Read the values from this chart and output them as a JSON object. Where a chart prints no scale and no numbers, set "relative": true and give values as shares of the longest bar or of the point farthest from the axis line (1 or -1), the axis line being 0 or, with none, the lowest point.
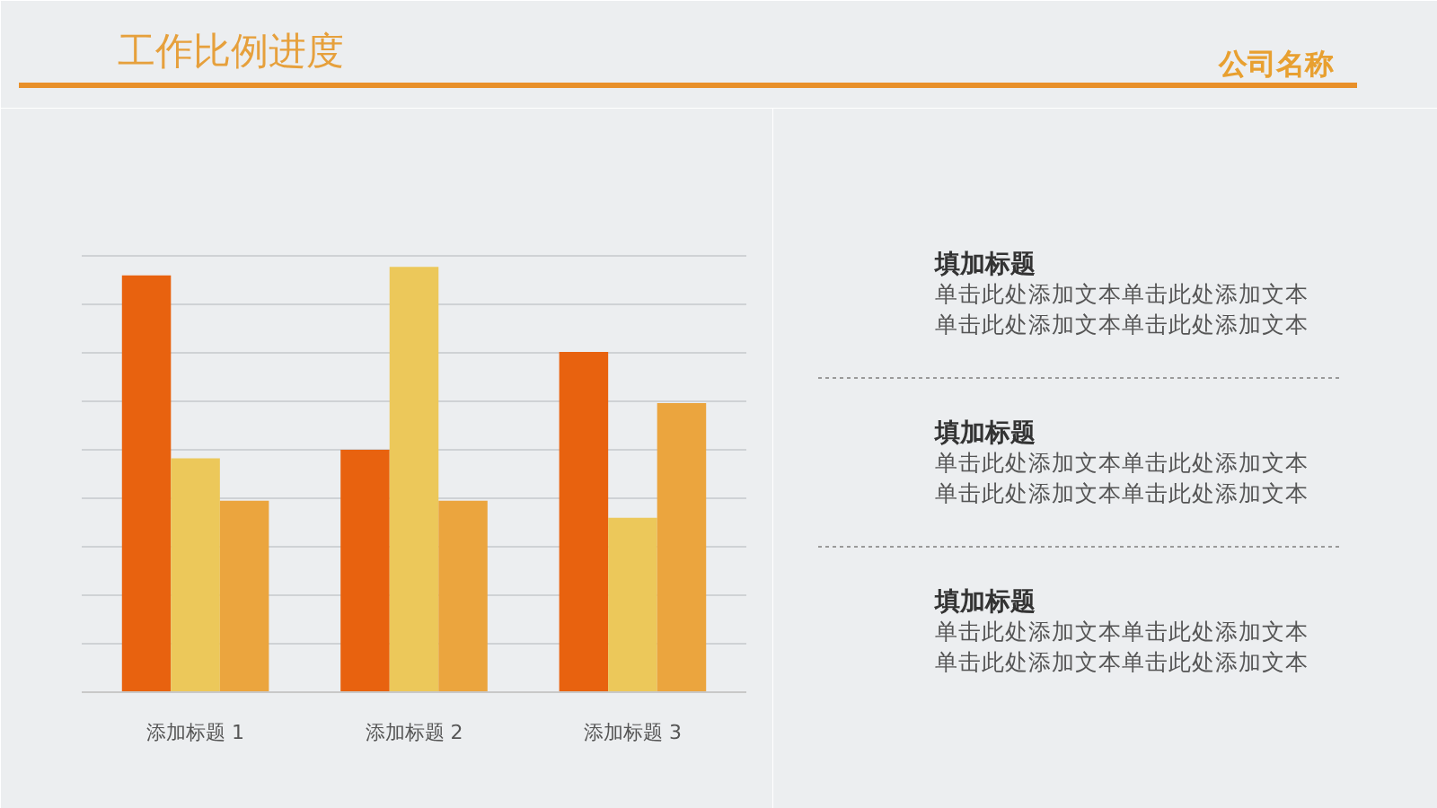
{
  "chart_data": {
    "type": "bar",
    "title": "工作比例进度",
    "categories": [
      "添加标题 1",
      "添加标题 2",
      "添加标题 3"
    ],
    "relative": true,
    "grid": "y",
    "series": [
      {
        "color": "#e8620f",
        "values": [
          0.98,
          0.57,
          0.8
        ]
      },
      {
        "color": "#ecc85a",
        "values": [
          0.55,
          1,
          0.41
        ]
      },
      {
        "color": "#eba53e",
        "values": [
          0.45,
          0.45,
          0.68
        ]
      }
    ],
    "annotations": [
      "公司名称",
      "填加标题",
      "单击此处添加文本单击此处添加文本",
      "单击此处添加文本单击此处添加文本",
      "填加标题",
      "单击此处添加文本单击此处添加文本",
      "单击此处添加文本单击此处添加文本",
      "填加标题",
      "单击此处添加文本单击此处添加文本",
      "单击此处添加文本单击此处添加文本"
    ]
  }
}
